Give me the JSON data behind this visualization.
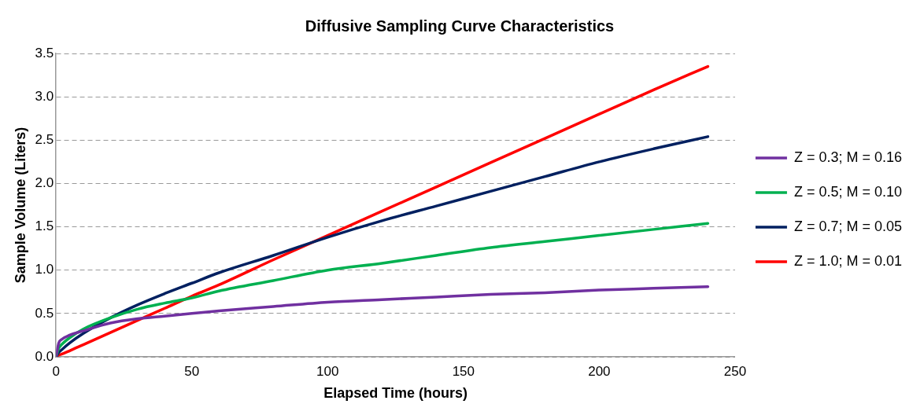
{
  "chart_data": {
    "type": "line",
    "title": "Diffusive Sampling Curve Characteristics",
    "xlabel": "Elapsed Time (hours)",
    "ylabel": "Sample Volume (Liters)",
    "x": [
      0,
      1,
      2,
      5,
      10,
      20,
      30,
      40,
      50,
      60,
      80,
      100,
      120,
      140,
      160,
      180,
      200,
      220,
      240
    ],
    "series": [
      {
        "name": "Z = 0.3; M = 0.16",
        "color": "#7030a0",
        "values": [
          0,
          0.16,
          0.2,
          0.25,
          0.3,
          0.39,
          0.44,
          0.47,
          0.5,
          0.53,
          0.58,
          0.63,
          0.66,
          0.69,
          0.72,
          0.74,
          0.77,
          0.79,
          0.81
        ]
      },
      {
        "name": "Z = 0.5; M = 0.10",
        "color": "#00b050",
        "values": [
          0,
          0.1,
          0.14,
          0.22,
          0.32,
          0.45,
          0.55,
          0.62,
          0.68,
          0.76,
          0.88,
          1.0,
          1.08,
          1.17,
          1.26,
          1.33,
          1.4,
          1.47,
          1.54
        ]
      },
      {
        "name": "Z = 0.7; M = 0.05",
        "color": "#002060",
        "values": [
          0,
          0.05,
          0.08,
          0.16,
          0.27,
          0.45,
          0.6,
          0.73,
          0.85,
          0.97,
          1.17,
          1.38,
          1.57,
          1.74,
          1.91,
          2.08,
          2.25,
          2.4,
          2.54
        ]
      },
      {
        "name": "Z = 1.0; M = 0.01",
        "color": "#ff0000",
        "values": [
          0,
          0.02,
          0.03,
          0.07,
          0.14,
          0.28,
          0.42,
          0.56,
          0.7,
          0.83,
          1.12,
          1.4,
          1.68,
          1.96,
          2.24,
          2.52,
          2.8,
          3.08,
          3.35
        ]
      }
    ],
    "xlim": [
      0,
      250
    ],
    "xticks": [
      0,
      50,
      100,
      150,
      200,
      250
    ],
    "ylim": [
      0,
      3.5
    ],
    "yticks": [
      {
        "value": 0,
        "label": "0.0"
      },
      {
        "value": 0.5,
        "label": "0.5"
      },
      {
        "value": 1,
        "label": "1.0"
      },
      {
        "value": 1.5,
        "label": "1.5"
      },
      {
        "value": 2,
        "label": "2.0"
      },
      {
        "value": 2.5,
        "label": "2.5"
      },
      {
        "value": 3,
        "label": "3.0"
      },
      {
        "value": 3.5,
        "label": "3.5"
      }
    ],
    "grid": "y",
    "legend": "right",
    "marker": "none",
    "line_style": "solid"
  }
}
